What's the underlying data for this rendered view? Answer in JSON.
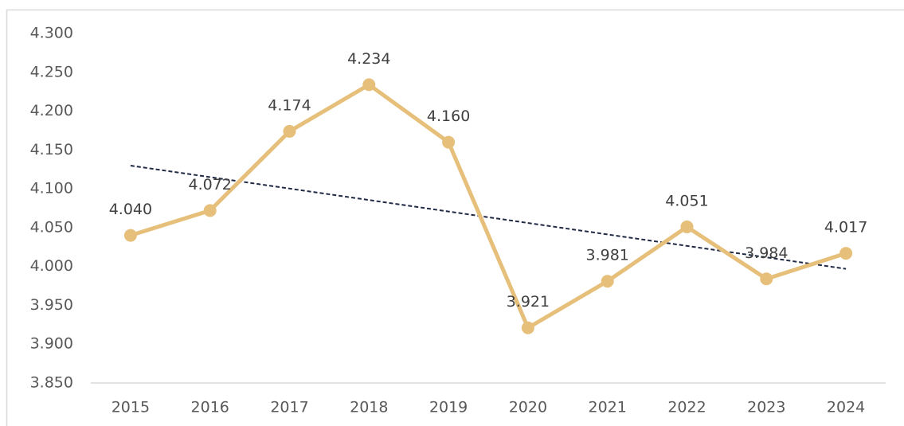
{
  "chart_data": {
    "type": "line",
    "categories": [
      "2015",
      "2016",
      "2017",
      "2018",
      "2019",
      "2020",
      "2021",
      "2022",
      "2023",
      "2024"
    ],
    "series": [
      {
        "color": "#e6bf7a",
        "values": [
          4.04,
          4.072,
          4.174,
          4.234,
          4.16,
          3.921,
          3.981,
          4.051,
          3.984,
          4.017
        ],
        "value_labels": [
          "4.040",
          "4.072",
          "4.174",
          "4.234",
          "4.160",
          "3.921",
          "3.981",
          "4.051",
          "3.984",
          "4.017"
        ],
        "trendline": "linear",
        "trendline_color": "#1f2a44"
      }
    ],
    "ylim": [
      3.85,
      4.3
    ],
    "yticks": [
      {
        "value": 3.85,
        "label": "3.850"
      },
      {
        "value": 3.9,
        "label": "3.900"
      },
      {
        "value": 3.95,
        "label": "3.950"
      },
      {
        "value": 4.0,
        "label": "4.000"
      },
      {
        "value": 4.05,
        "label": "4.050"
      },
      {
        "value": 4.1,
        "label": "4.100"
      },
      {
        "value": 4.15,
        "label": "4.150"
      },
      {
        "value": 4.2,
        "label": "4.200"
      },
      {
        "value": 4.25,
        "label": "4.250"
      },
      {
        "value": 4.3,
        "label": "4.300"
      }
    ],
    "grid": false
  }
}
